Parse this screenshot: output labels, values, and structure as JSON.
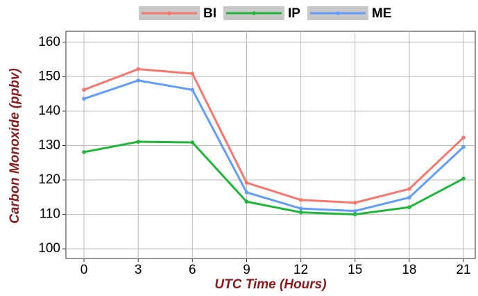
{
  "chart_data": {
    "type": "line",
    "x_label": "UTC Time (Hours)",
    "y_label": "Carbon Monoxide (ppbv)",
    "x": [
      0,
      3,
      6,
      9,
      12,
      15,
      18,
      21
    ],
    "series": [
      {
        "name": "BI",
        "color": "#f8766d",
        "values": [
          146.2,
          152.2,
          150.9,
          119.2,
          114.2,
          113.4,
          117.4,
          132.3
        ]
      },
      {
        "name": "IP",
        "color": "#1fb53a",
        "values": [
          128.1,
          131.1,
          130.9,
          113.7,
          110.6,
          110.0,
          112.1,
          120.4
        ]
      },
      {
        "name": "ME",
        "color": "#619cff",
        "values": [
          143.6,
          148.9,
          146.2,
          116.4,
          111.7,
          111.0,
          114.9,
          129.6
        ]
      }
    ],
    "xlim": [
      -1,
      21.65
    ],
    "ylim": [
      97.2,
      163.2
    ],
    "xticks": [
      0,
      3,
      6,
      9,
      12,
      15,
      18,
      21
    ],
    "yticks": [
      100,
      110,
      120,
      130,
      140,
      150,
      160
    ],
    "grid": true,
    "legend": "top"
  }
}
